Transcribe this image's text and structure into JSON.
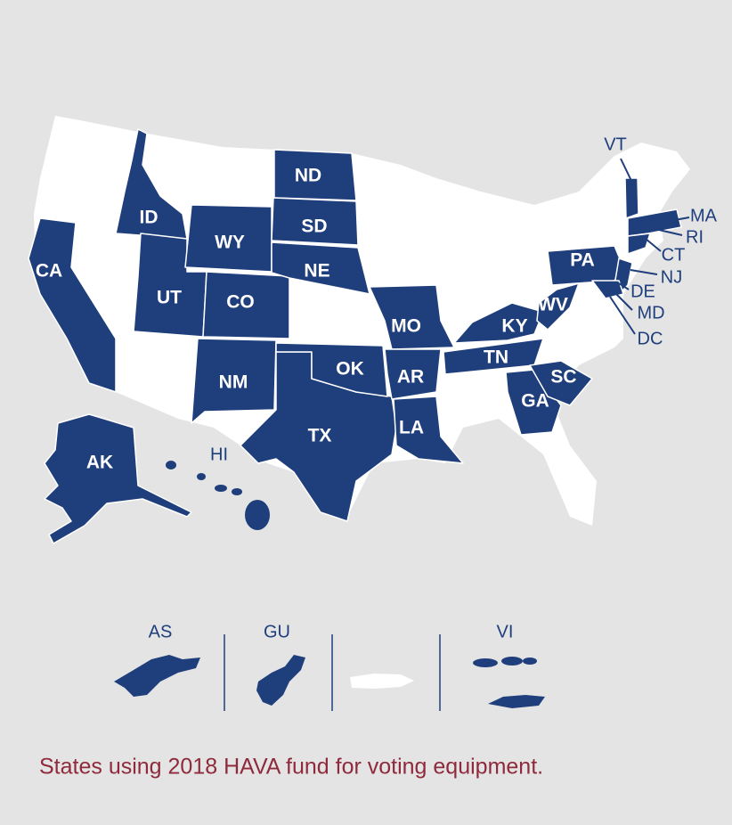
{
  "map": {
    "state_labels": [
      "CA",
      "ID",
      "WY",
      "UT",
      "CO",
      "ND",
      "SD",
      "NE",
      "NM",
      "TX",
      "OK",
      "MO",
      "AR",
      "LA",
      "KY",
      "TN",
      "WV",
      "PA",
      "GA",
      "SC",
      "AK"
    ],
    "callout_labels": [
      "VT",
      "MA",
      "RI",
      "CT",
      "NJ",
      "DE",
      "MD",
      "DC",
      "HI"
    ],
    "territory_labels": [
      "AS",
      "GU",
      "VI"
    ]
  },
  "caption": "States using 2018 HAVA fund for voting equipment."
}
